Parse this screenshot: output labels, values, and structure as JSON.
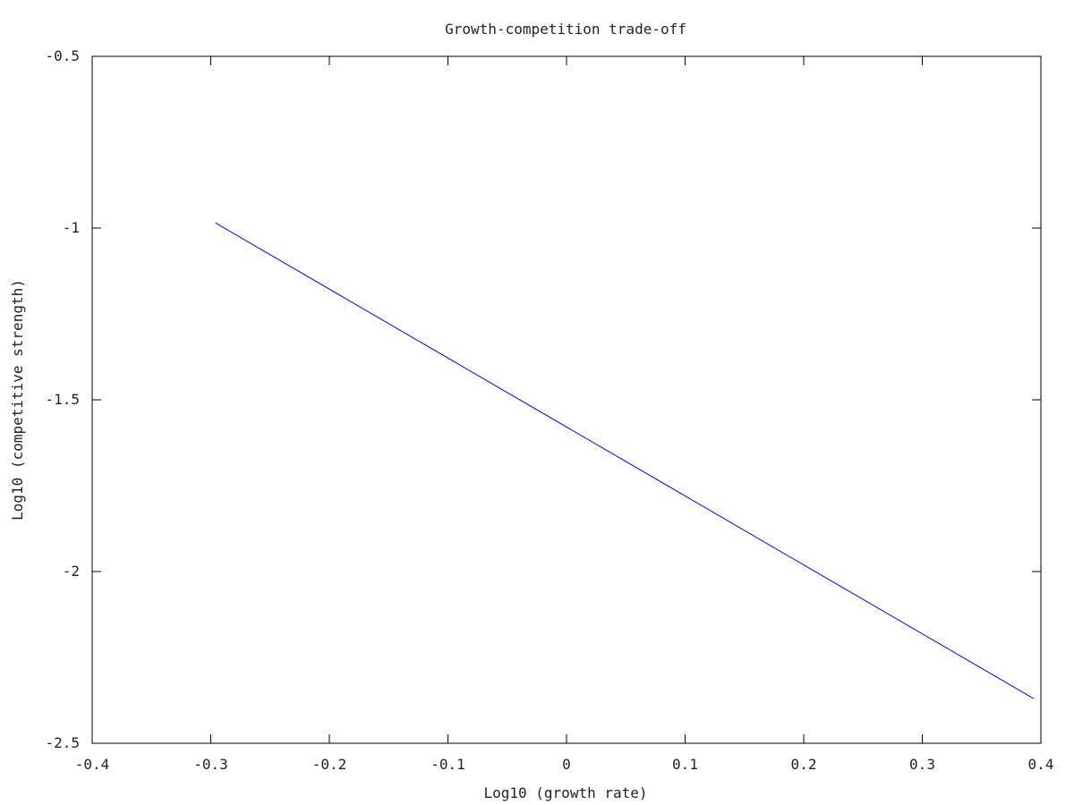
{
  "chart_data": {
    "type": "line",
    "title": "Growth-competition trade-off",
    "xlabel": "Log10 (growth rate)",
    "ylabel": "Log10 (competitive strength)",
    "xlim": [
      -0.4,
      0.4
    ],
    "ylim": [
      -2.5,
      -0.5
    ],
    "xticks": [
      -0.4,
      -0.3,
      -0.2,
      -0.1,
      0,
      0.1,
      0.2,
      0.3,
      0.4
    ],
    "xtick_labels": [
      "-0.4",
      "-0.3",
      "-0.2",
      "-0.1",
      "0",
      "0.1",
      "0.2",
      "0.3",
      "0.4"
    ],
    "yticks": [
      -2.5,
      -2,
      -1.5,
      -1,
      -0.5
    ],
    "ytick_labels": [
      "-2.5",
      "-2",
      "-1.5",
      "-1",
      "-0.5"
    ],
    "grid": false,
    "series": [
      {
        "color": "#0000ff",
        "x": [
          -0.296,
          0.394
        ],
        "y": [
          -0.985,
          -2.37
        ]
      }
    ]
  }
}
